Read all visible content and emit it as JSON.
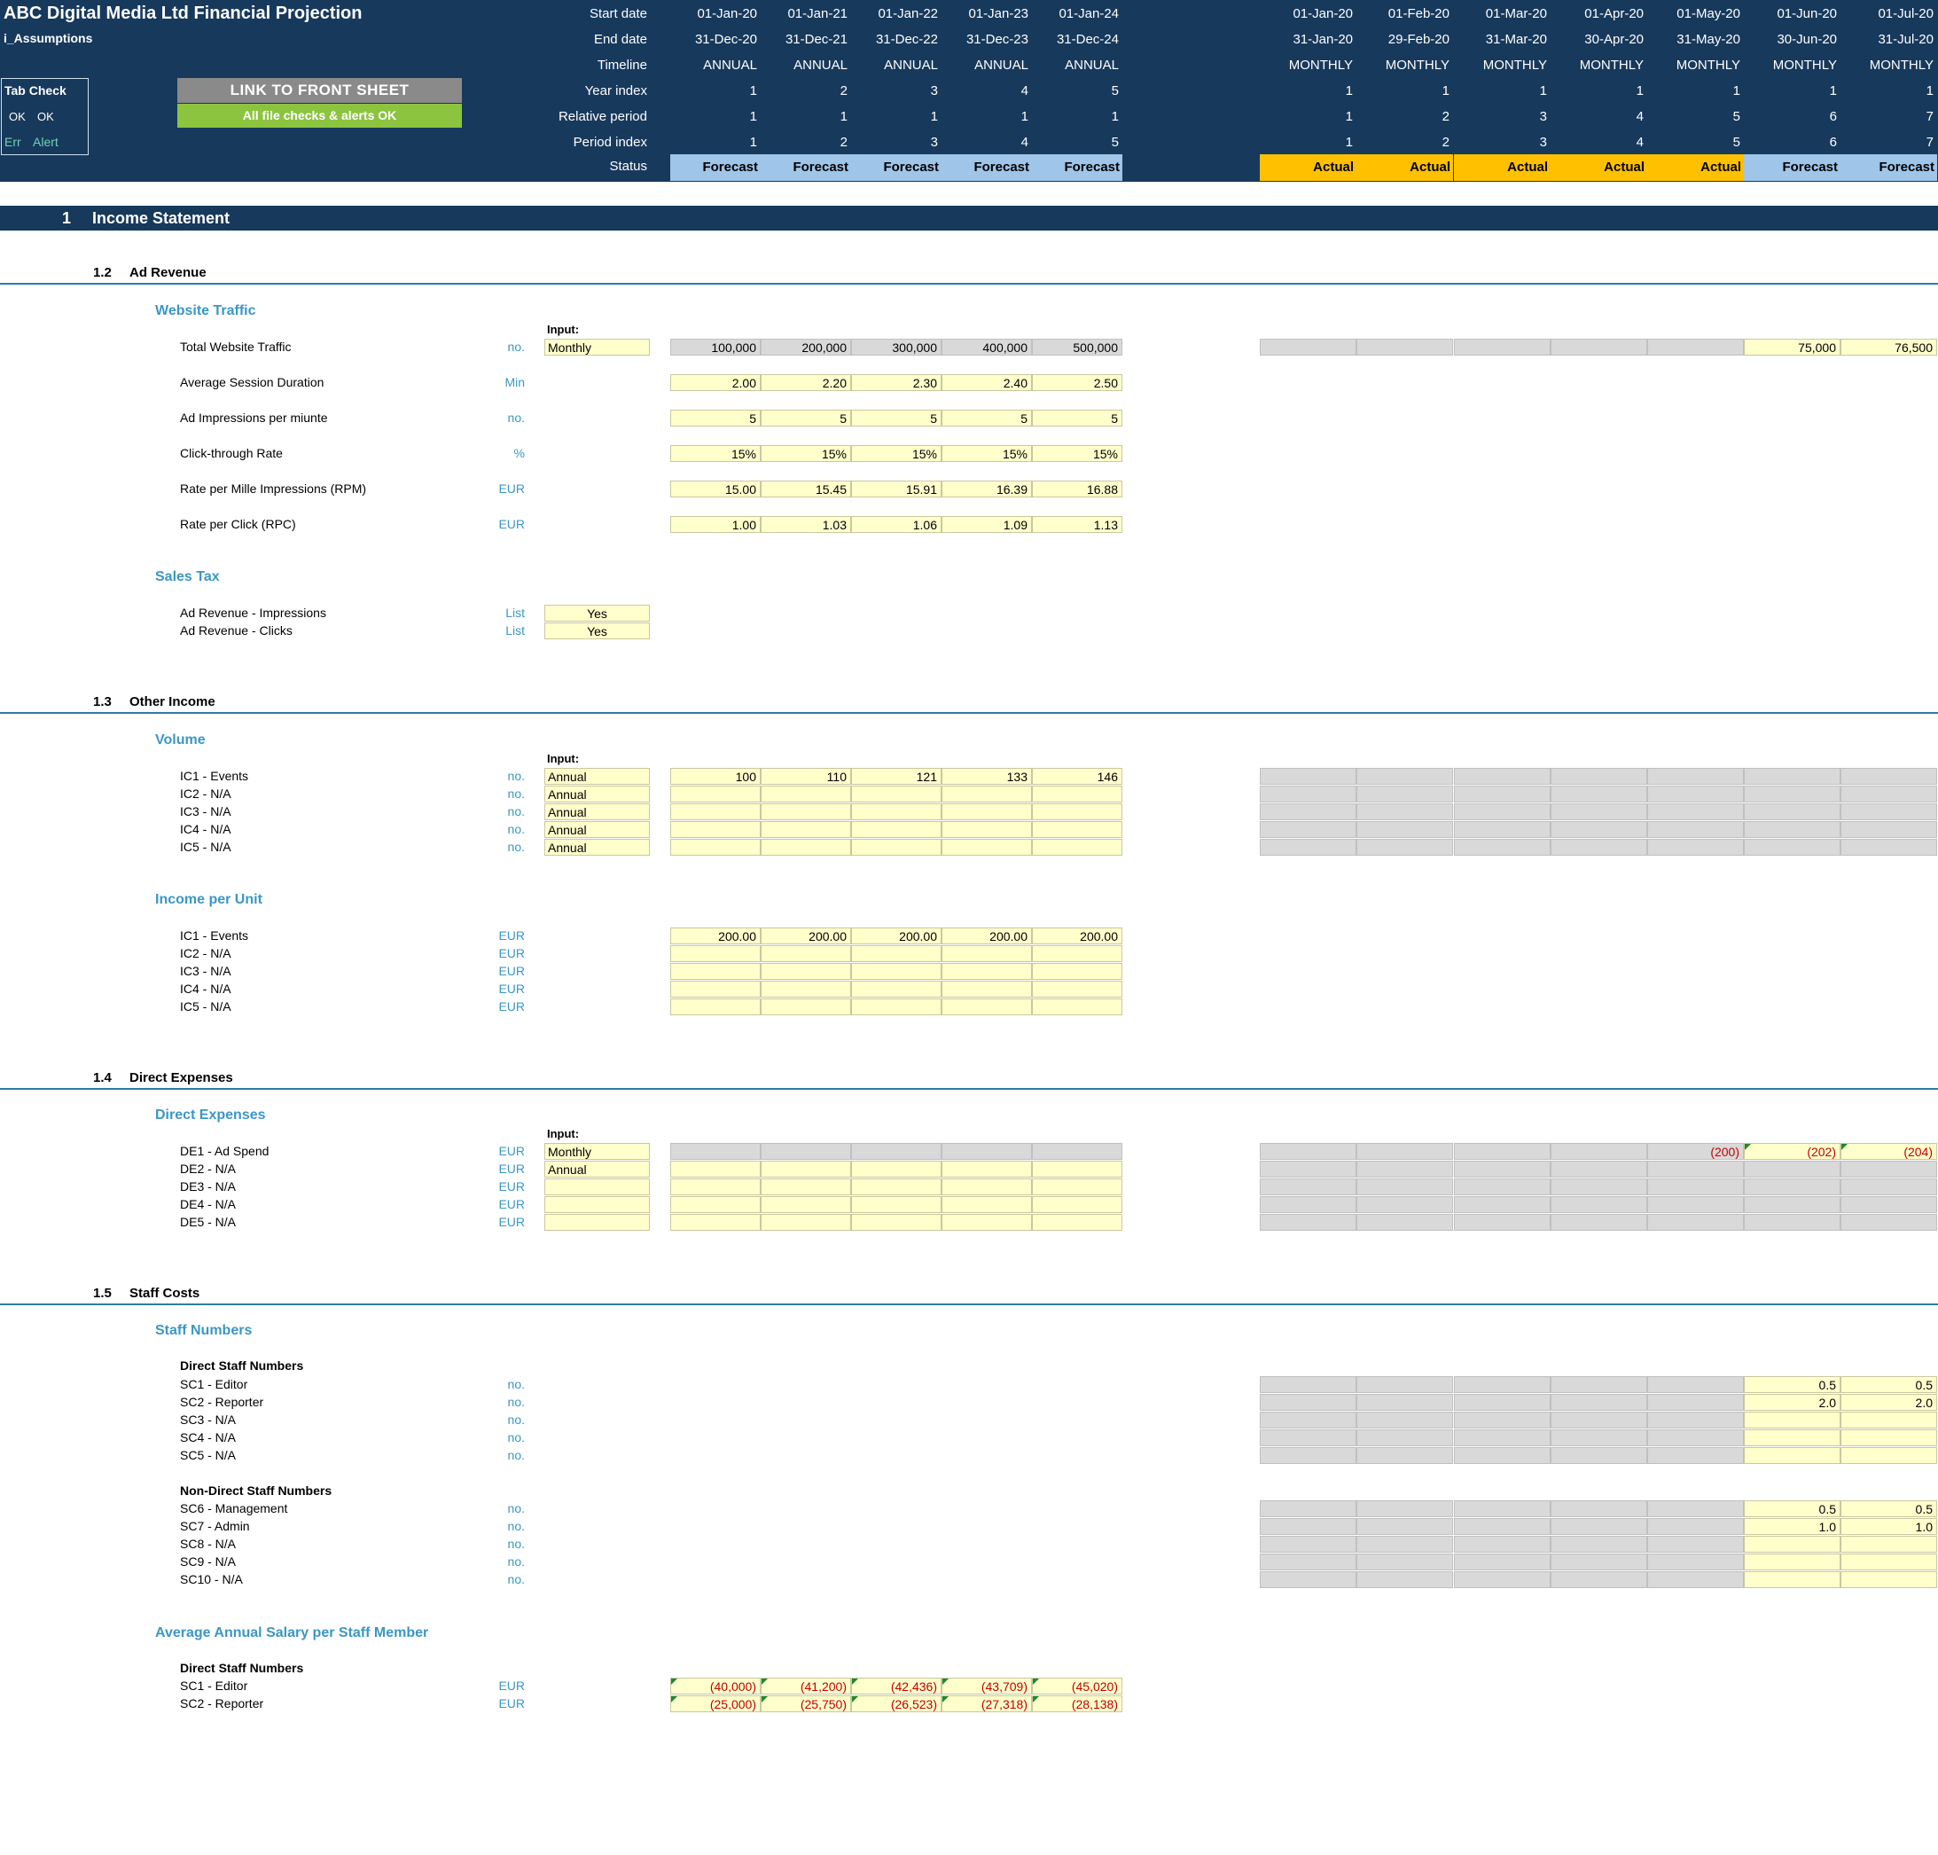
{
  "header": {
    "title": "ABC Digital Media Ltd Financial Projection",
    "sheet": "i_Assumptions",
    "labels": [
      "Start date",
      "End date",
      "Timeline",
      "Year index",
      "Relative period",
      "Period index",
      "Status"
    ],
    "annual": {
      "start": [
        "01-Jan-20",
        "01-Jan-21",
        "01-Jan-22",
        "01-Jan-23",
        "01-Jan-24"
      ],
      "end": [
        "31-Dec-20",
        "31-Dec-21",
        "31-Dec-22",
        "31-Dec-23",
        "31-Dec-24"
      ],
      "timeline": [
        "ANNUAL",
        "ANNUAL",
        "ANNUAL",
        "ANNUAL",
        "ANNUAL"
      ],
      "year_index": [
        "1",
        "2",
        "3",
        "4",
        "5"
      ],
      "relative": [
        "1",
        "1",
        "1",
        "1",
        "1"
      ],
      "period_index": [
        "1",
        "2",
        "3",
        "4",
        "5"
      ],
      "status": [
        "Forecast",
        "Forecast",
        "Forecast",
        "Forecast",
        "Forecast"
      ]
    },
    "monthly": {
      "start": [
        "01-Jan-20",
        "01-Feb-20",
        "01-Mar-20",
        "01-Apr-20",
        "01-May-20",
        "01-Jun-20",
        "01-Jul-20"
      ],
      "end": [
        "31-Jan-20",
        "29-Feb-20",
        "31-Mar-20",
        "30-Apr-20",
        "31-May-20",
        "30-Jun-20",
        "31-Jul-20"
      ],
      "timeline": [
        "MONTHLY",
        "MONTHLY",
        "MONTHLY",
        "MONTHLY",
        "MONTHLY",
        "MONTHLY",
        "MONTHLY"
      ],
      "year_index": [
        "1",
        "1",
        "1",
        "1",
        "1",
        "1",
        "1"
      ],
      "relative": [
        "1",
        "2",
        "3",
        "4",
        "5",
        "6",
        "7"
      ],
      "period_index": [
        "1",
        "2",
        "3",
        "4",
        "5",
        "6",
        "7"
      ],
      "status": [
        "Actual",
        "Actual",
        "Actual",
        "Actual",
        "Actual",
        "Forecast",
        "Forecast"
      ]
    },
    "tab_check": {
      "title": "Tab Check",
      "ok1": "OK",
      "ok2": "OK",
      "err": "Err",
      "alert": "Alert"
    },
    "link_button": "LINK TO FRONT SHEET",
    "checks_status": "All file checks & alerts OK"
  },
  "section1": {
    "num": "1",
    "title": "Income Statement"
  },
  "s12": {
    "num": "1.2",
    "title": "Ad Revenue",
    "group1": "Website Traffic",
    "input_label": "Input:",
    "rows": [
      {
        "label": "Total Website Traffic",
        "unit": "no.",
        "input": "Monthly",
        "annual": [
          "100,000",
          "200,000",
          "300,000",
          "400,000",
          "500,000"
        ],
        "monthly": [
          "",
          "",
          "",
          "",
          "",
          "75,000",
          "76,500"
        ]
      },
      {
        "label": "Average Session Duration",
        "unit": "Min",
        "annual": [
          "2.00",
          "2.20",
          "2.30",
          "2.40",
          "2.50"
        ]
      },
      {
        "label": "Ad Impressions per miunte",
        "unit": "no.",
        "annual": [
          "5",
          "5",
          "5",
          "5",
          "5"
        ]
      },
      {
        "label": "Click-through Rate",
        "unit": "%",
        "annual": [
          "15%",
          "15%",
          "15%",
          "15%",
          "15%"
        ]
      },
      {
        "label": "Rate per Mille Impressions (RPM)",
        "unit": "EUR",
        "annual": [
          "15.00",
          "15.45",
          "15.91",
          "16.39",
          "16.88"
        ]
      },
      {
        "label": "Rate per Click (RPC)",
        "unit": "EUR",
        "annual": [
          "1.00",
          "1.03",
          "1.06",
          "1.09",
          "1.13"
        ]
      }
    ],
    "group2": "Sales Tax",
    "tax_rows": [
      {
        "label": "Ad Revenue - Impressions",
        "unit": "List",
        "value": "Yes"
      },
      {
        "label": "Ad Revenue - Clicks",
        "unit": "List",
        "value": "Yes"
      }
    ]
  },
  "s13": {
    "num": "1.3",
    "title": "Other Income",
    "group1": "Volume",
    "input_label": "Input:",
    "volume": [
      {
        "label": "IC1 - Events",
        "unit": "no.",
        "input": "Annual",
        "annual": [
          "100",
          "110",
          "121",
          "133",
          "146"
        ]
      },
      {
        "label": "IC2 - N/A",
        "unit": "no.",
        "input": "Annual",
        "annual": [
          "",
          "",
          "",
          "",
          ""
        ]
      },
      {
        "label": "IC3 - N/A",
        "unit": "no.",
        "input": "Annual",
        "annual": [
          "",
          "",
          "",
          "",
          ""
        ]
      },
      {
        "label": "IC4 - N/A",
        "unit": "no.",
        "input": "Annual",
        "annual": [
          "",
          "",
          "",
          "",
          ""
        ]
      },
      {
        "label": "IC5 - N/A",
        "unit": "no.",
        "input": "Annual",
        "annual": [
          "",
          "",
          "",
          "",
          ""
        ]
      }
    ],
    "group2": "Income per Unit",
    "ipu": [
      {
        "label": "IC1 - Events",
        "unit": "EUR",
        "annual": [
          "200.00",
          "200.00",
          "200.00",
          "200.00",
          "200.00"
        ]
      },
      {
        "label": "IC2 - N/A",
        "unit": "EUR",
        "annual": [
          "",
          "",
          "",
          "",
          ""
        ]
      },
      {
        "label": "IC3 - N/A",
        "unit": "EUR",
        "annual": [
          "",
          "",
          "",
          "",
          ""
        ]
      },
      {
        "label": "IC4 - N/A",
        "unit": "EUR",
        "annual": [
          "",
          "",
          "",
          "",
          ""
        ]
      },
      {
        "label": "IC5 - N/A",
        "unit": "EUR",
        "annual": [
          "",
          "",
          "",
          "",
          ""
        ]
      }
    ]
  },
  "s14": {
    "num": "1.4",
    "title": "Direct Expenses",
    "group1": "Direct Expenses",
    "input_label": "Input:",
    "rows": [
      {
        "label": "DE1 - Ad Spend",
        "unit": "EUR",
        "input": "Monthly",
        "monthly": [
          "",
          "",
          "",
          "",
          "(200)",
          "(202)",
          "(204)"
        ]
      },
      {
        "label": "DE2 - N/A",
        "unit": "EUR",
        "input": "Annual"
      },
      {
        "label": "DE3 - N/A",
        "unit": "EUR",
        "input": ""
      },
      {
        "label": "DE4 - N/A",
        "unit": "EUR",
        "input": ""
      },
      {
        "label": "DE5 - N/A",
        "unit": "EUR",
        "input": ""
      }
    ]
  },
  "s15": {
    "num": "1.5",
    "title": "Staff Costs",
    "group1": "Staff Numbers",
    "direct_title": "Direct Staff Numbers",
    "direct": [
      {
        "label": "SC1 - Editor",
        "unit": "no.",
        "monthly": [
          "",
          "",
          "",
          "",
          "",
          "0.5",
          "0.5"
        ]
      },
      {
        "label": "SC2 - Reporter",
        "unit": "no.",
        "monthly": [
          "",
          "",
          "",
          "",
          "",
          "2.0",
          "2.0"
        ]
      },
      {
        "label": "SC3 - N/A",
        "unit": "no.",
        "monthly": [
          "",
          "",
          "",
          "",
          "",
          "",
          ""
        ]
      },
      {
        "label": "SC4 - N/A",
        "unit": "no.",
        "monthly": [
          "",
          "",
          "",
          "",
          "",
          "",
          ""
        ]
      },
      {
        "label": "SC5 - N/A",
        "unit": "no.",
        "monthly": [
          "",
          "",
          "",
          "",
          "",
          "",
          ""
        ]
      }
    ],
    "nondirect_title": "Non-Direct Staff Numbers",
    "nondirect": [
      {
        "label": "SC6 - Management",
        "unit": "no.",
        "monthly": [
          "",
          "",
          "",
          "",
          "",
          "0.5",
          "0.5"
        ]
      },
      {
        "label": "SC7 - Admin",
        "unit": "no.",
        "monthly": [
          "",
          "",
          "",
          "",
          "",
          "1.0",
          "1.0"
        ]
      },
      {
        "label": "SC8 - N/A",
        "unit": "no.",
        "monthly": [
          "",
          "",
          "",
          "",
          "",
          "",
          ""
        ]
      },
      {
        "label": "SC9 - N/A",
        "unit": "no.",
        "monthly": [
          "",
          "",
          "",
          "",
          "",
          "",
          ""
        ]
      },
      {
        "label": "SC10 - N/A",
        "unit": "no.",
        "monthly": [
          "",
          "",
          "",
          "",
          "",
          "",
          ""
        ]
      }
    ],
    "group2": "Average Annual Salary per Staff Member",
    "salary_title": "Direct Staff Numbers",
    "salary": [
      {
        "label": "SC1 - Editor",
        "unit": "EUR",
        "annual": [
          "(40,000)",
          "(41,200)",
          "(42,436)",
          "(43,709)",
          "(45,020)"
        ]
      },
      {
        "label": "SC2 - Reporter",
        "unit": "EUR",
        "annual": [
          "(25,000)",
          "(25,750)",
          "(26,523)",
          "(27,318)",
          "(28,138)"
        ]
      }
    ]
  },
  "colors": {
    "header_bg": "#17395c",
    "accent": "#3b97c4",
    "input": "#ffffcc",
    "grey": "#d9d9d9",
    "actual": "#ffc000",
    "forecast": "#9fc5e8",
    "ok_green": "#8cc43f",
    "negative": "#c00000"
  }
}
